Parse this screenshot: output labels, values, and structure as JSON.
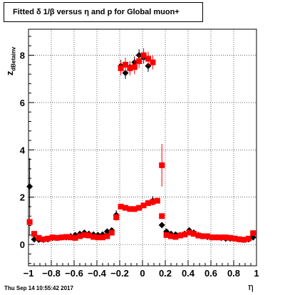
{
  "header": {
    "title": "Fitted δ 1/β versus η and p for Global muon+",
    "timestamp": "Thu Sep 14 10:55:42 2017"
  },
  "colors": {
    "series_a": "#000000",
    "series_b": "#ff0000",
    "grid": "#000000"
  },
  "chart_data": {
    "type": "scatter",
    "title": "Fitted δ 1/β versus η and p for Global muon+",
    "xlabel": "η",
    "ylabel": "z",
    "ylabel_sub": "dBetainv",
    "xlim": [
      -1,
      1
    ],
    "ylim": [
      -0.9,
      9.1
    ],
    "grid": true,
    "x_ticks": [
      -1,
      -0.8,
      -0.6,
      -0.4,
      -0.2,
      0,
      0.2,
      0.4,
      0.6,
      0.8,
      1
    ],
    "x_tick_labels": [
      "−1",
      "−0.8",
      "−0.6",
      "−0.4",
      "−0.2",
      "0",
      "0.2",
      "0.4",
      "0.6",
      "0.8",
      "1"
    ],
    "y_ticks": [
      0,
      2,
      4,
      6,
      8
    ],
    "y_tick_labels": [
      "0",
      "2",
      "4",
      "6",
      "8"
    ],
    "series": [
      {
        "marker": "diamond",
        "color": "#000000",
        "points": [
          [
            -0.99,
            2.45,
            1.2
          ],
          [
            -0.95,
            0.22,
            0.12
          ],
          [
            -0.91,
            0.2,
            0.1
          ],
          [
            -0.87,
            0.2,
            0.08
          ],
          [
            -0.83,
            0.22,
            0.07
          ],
          [
            -0.79,
            0.28,
            0.05
          ],
          [
            -0.75,
            0.28,
            0.05
          ],
          [
            -0.71,
            0.3,
            0.05
          ],
          [
            -0.67,
            0.3,
            0.05
          ],
          [
            -0.63,
            0.35,
            0.05
          ],
          [
            -0.59,
            0.4,
            0.05
          ],
          [
            -0.55,
            0.45,
            0.05
          ],
          [
            -0.51,
            0.5,
            0.05
          ],
          [
            -0.47,
            0.45,
            0.05
          ],
          [
            -0.43,
            0.42,
            0.05
          ],
          [
            -0.39,
            0.4,
            0.05
          ],
          [
            -0.35,
            0.42,
            0.05
          ],
          [
            -0.31,
            0.55,
            0.05
          ],
          [
            -0.27,
            0.6,
            0.05
          ],
          [
            -0.23,
            1.25,
            0.2
          ],
          [
            -0.19,
            7.55,
            0.25
          ],
          [
            -0.15,
            7.25,
            0.25
          ],
          [
            -0.11,
            7.5,
            0.25
          ],
          [
            -0.07,
            7.7,
            0.25
          ],
          [
            -0.03,
            8.0,
            0.25
          ],
          [
            0.01,
            7.9,
            0.25
          ],
          [
            0.05,
            7.55,
            0.25
          ],
          [
            0.09,
            1.85,
            0.2
          ],
          [
            0.17,
            0.82,
            0.05
          ],
          [
            0.21,
            0.55,
            0.05
          ],
          [
            0.25,
            0.45,
            0.05
          ],
          [
            0.29,
            0.42,
            0.05
          ],
          [
            0.33,
            0.4,
            0.05
          ],
          [
            0.37,
            0.45,
            0.05
          ],
          [
            0.41,
            0.6,
            0.05
          ],
          [
            0.45,
            0.5,
            0.05
          ],
          [
            0.49,
            0.4,
            0.05
          ],
          [
            0.53,
            0.35,
            0.05
          ],
          [
            0.57,
            0.32,
            0.05
          ],
          [
            0.61,
            0.3,
            0.05
          ],
          [
            0.65,
            0.3,
            0.05
          ],
          [
            0.69,
            0.28,
            0.05
          ],
          [
            0.73,
            0.25,
            0.05
          ],
          [
            0.77,
            0.25,
            0.05
          ],
          [
            0.81,
            0.25,
            0.05
          ],
          [
            0.85,
            0.22,
            0.05
          ],
          [
            0.89,
            0.2,
            0.05
          ],
          [
            0.93,
            0.22,
            0.05
          ],
          [
            0.97,
            0.3,
            0.05
          ]
        ]
      },
      {
        "marker": "square",
        "color": "#ff0000",
        "points": [
          [
            -0.99,
            0.95,
            0.6
          ],
          [
            -0.95,
            0.45,
            0.1
          ],
          [
            -0.91,
            0.28,
            0.08
          ],
          [
            -0.87,
            0.22,
            0.06
          ],
          [
            -0.83,
            0.25,
            0.05
          ],
          [
            -0.79,
            0.3,
            0.05
          ],
          [
            -0.75,
            0.28,
            0.05
          ],
          [
            -0.71,
            0.3,
            0.05
          ],
          [
            -0.67,
            0.32,
            0.05
          ],
          [
            -0.63,
            0.3,
            0.05
          ],
          [
            -0.59,
            0.28,
            0.05
          ],
          [
            -0.55,
            0.35,
            0.05
          ],
          [
            -0.51,
            0.4,
            0.05
          ],
          [
            -0.47,
            0.38,
            0.05
          ],
          [
            -0.43,
            0.32,
            0.05
          ],
          [
            -0.39,
            0.3,
            0.05
          ],
          [
            -0.35,
            0.3,
            0.05
          ],
          [
            -0.31,
            0.35,
            0.05
          ],
          [
            -0.27,
            0.5,
            0.05
          ],
          [
            -0.23,
            1.15,
            0.15
          ],
          [
            -0.19,
            1.6,
            0.1
          ],
          [
            -0.15,
            1.55,
            0.1
          ],
          [
            -0.11,
            1.5,
            0.1
          ],
          [
            -0.07,
            1.5,
            0.1
          ],
          [
            -0.03,
            1.55,
            0.1
          ],
          [
            0.01,
            1.65,
            0.1
          ],
          [
            0.05,
            1.75,
            0.1
          ],
          [
            0.09,
            1.8,
            0.1
          ],
          [
            0.13,
            1.85,
            0.1
          ],
          [
            -0.19,
            7.45,
            0.3
          ],
          [
            -0.15,
            7.6,
            0.3
          ],
          [
            -0.11,
            7.45,
            0.3
          ],
          [
            -0.07,
            7.5,
            0.3
          ],
          [
            -0.03,
            7.75,
            0.3
          ],
          [
            0.01,
            8.0,
            0.3
          ],
          [
            0.05,
            7.85,
            0.3
          ],
          [
            0.09,
            7.7,
            0.3
          ],
          [
            0.17,
            3.35,
            0.9
          ],
          [
            0.17,
            1.2,
            0.1
          ],
          [
            0.21,
            0.4,
            0.05
          ],
          [
            0.25,
            0.35,
            0.05
          ],
          [
            0.29,
            0.32,
            0.05
          ],
          [
            0.33,
            0.38,
            0.05
          ],
          [
            0.37,
            0.42,
            0.05
          ],
          [
            0.41,
            0.5,
            0.05
          ],
          [
            0.45,
            0.45,
            0.05
          ],
          [
            0.49,
            0.38,
            0.05
          ],
          [
            0.53,
            0.35,
            0.05
          ],
          [
            0.57,
            0.35,
            0.05
          ],
          [
            0.61,
            0.3,
            0.05
          ],
          [
            0.65,
            0.3,
            0.05
          ],
          [
            0.69,
            0.3,
            0.05
          ],
          [
            0.73,
            0.3,
            0.05
          ],
          [
            0.77,
            0.28,
            0.05
          ],
          [
            0.81,
            0.25,
            0.05
          ],
          [
            0.85,
            0.22,
            0.05
          ],
          [
            0.89,
            0.2,
            0.05
          ],
          [
            0.93,
            0.25,
            0.05
          ],
          [
            0.97,
            0.48,
            0.05
          ]
        ]
      }
    ]
  }
}
